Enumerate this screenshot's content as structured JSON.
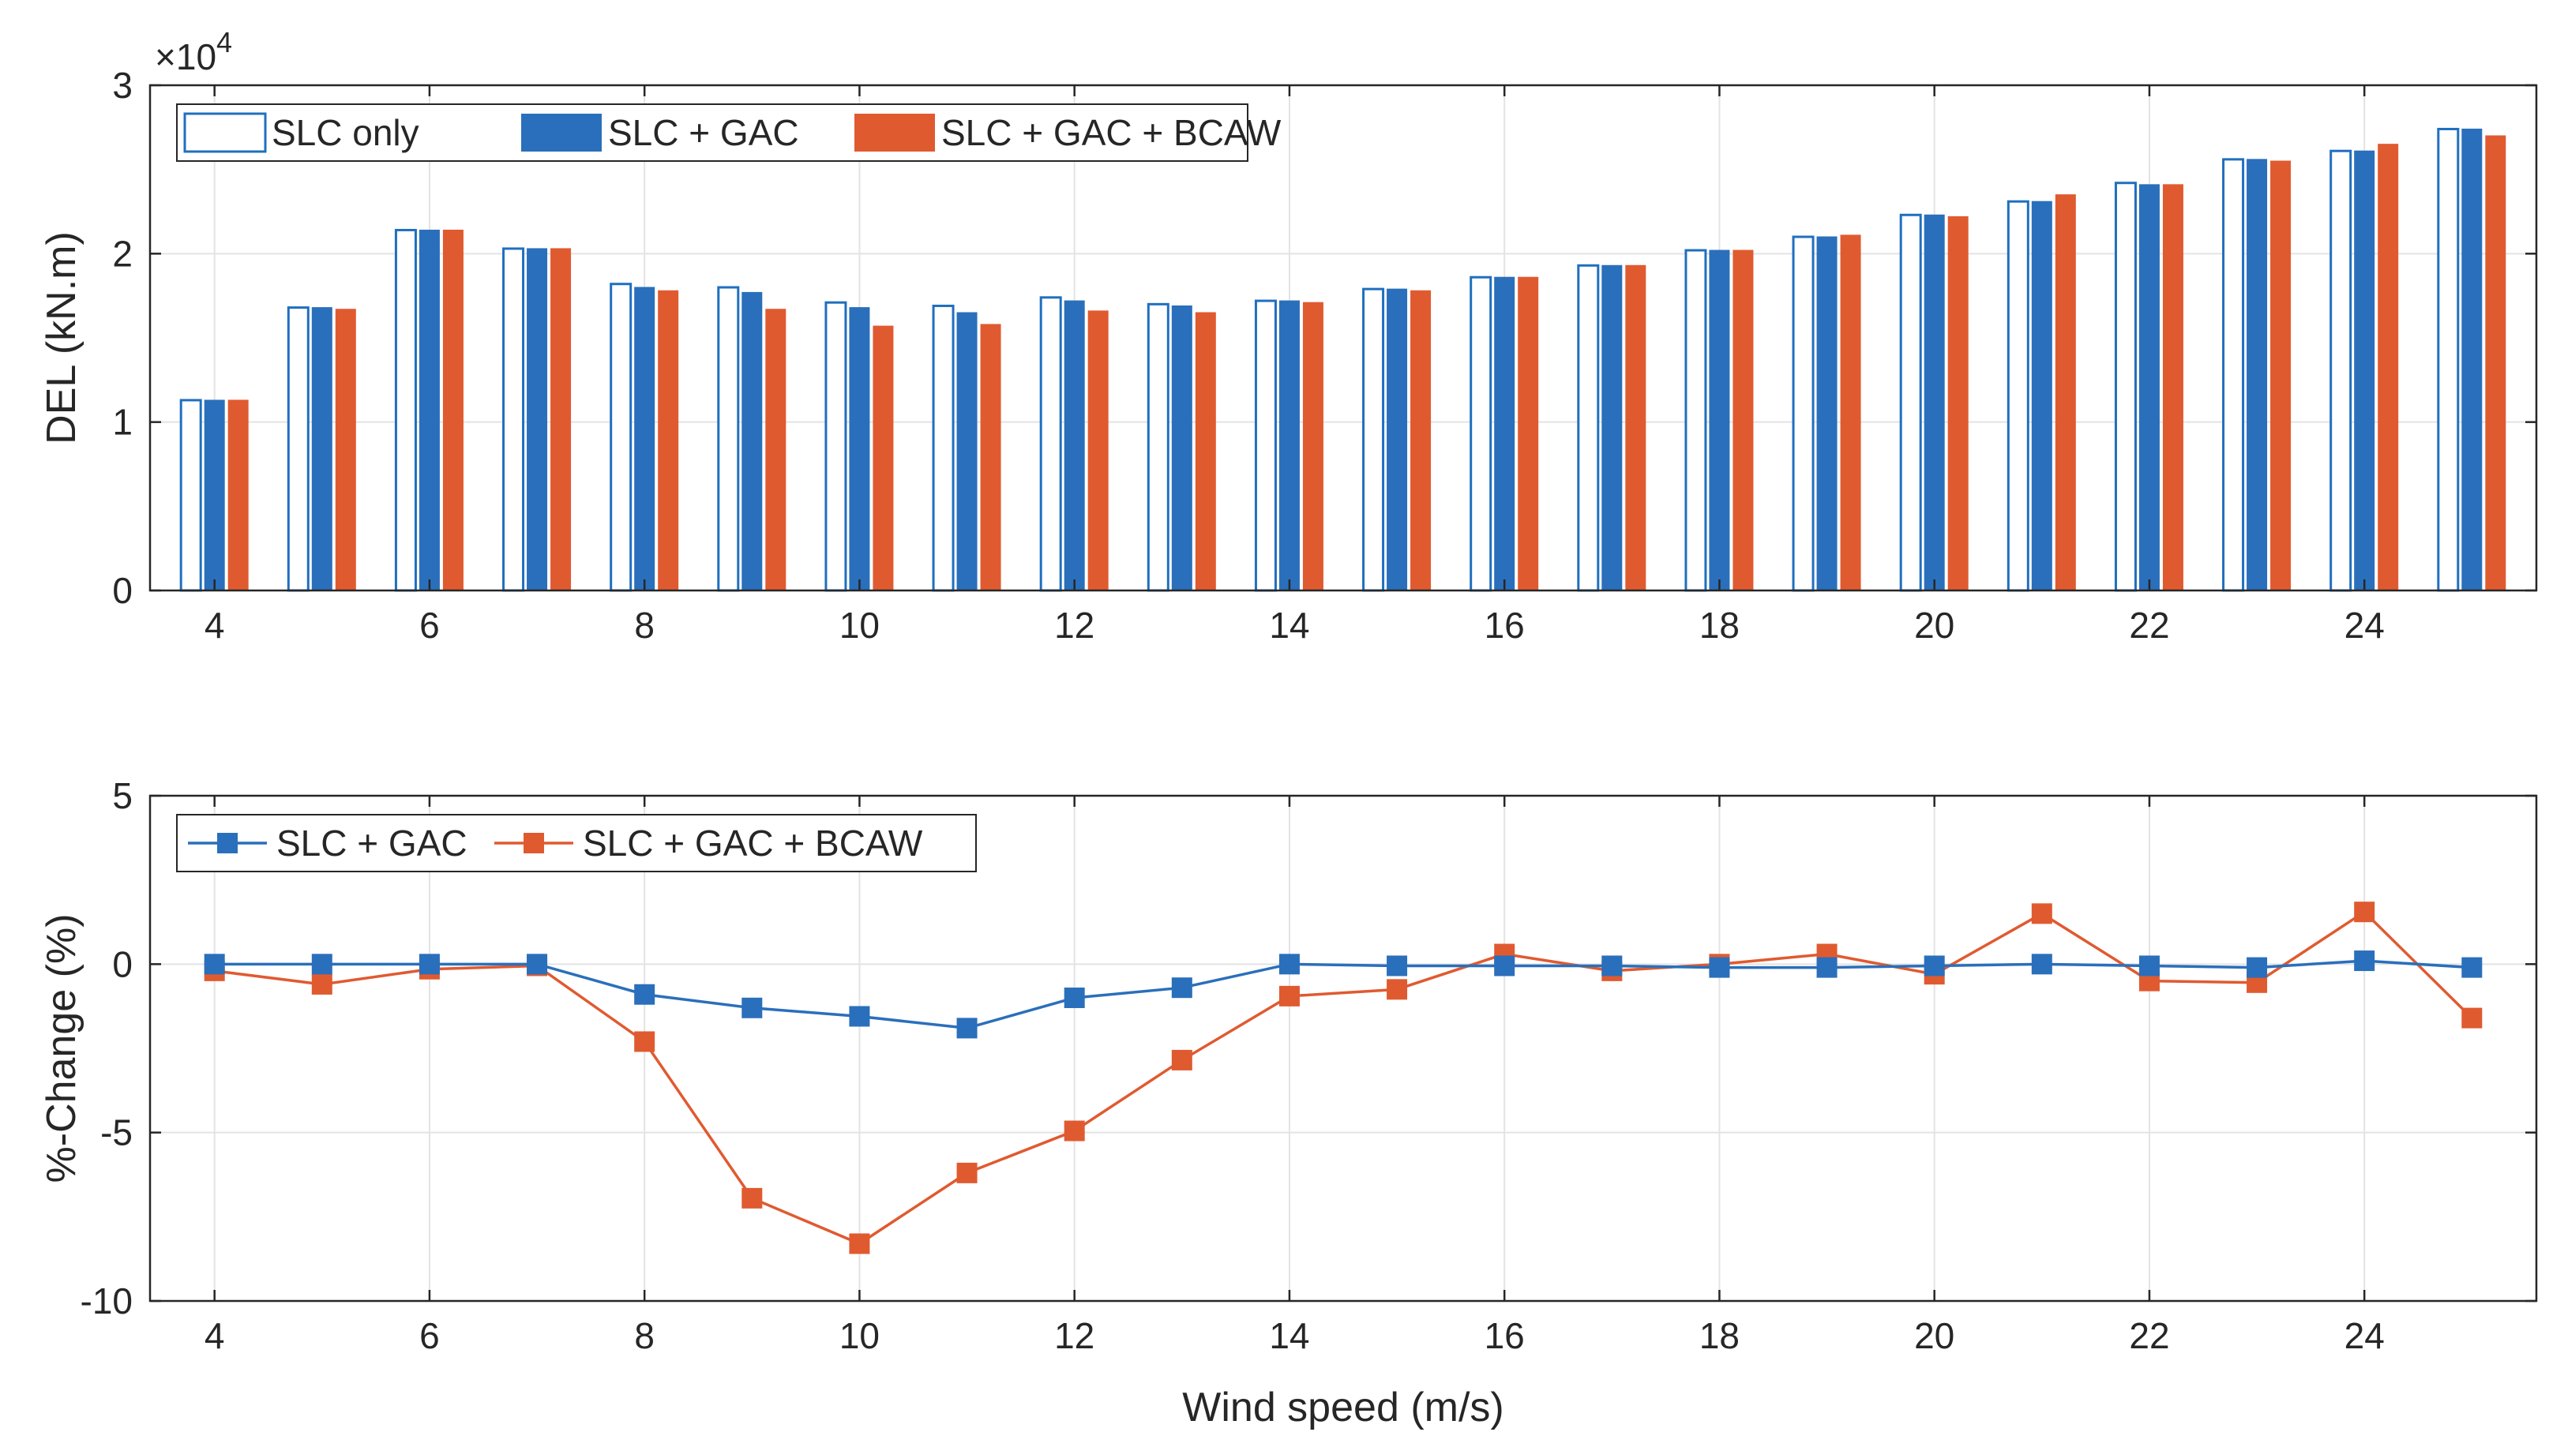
{
  "chart_data": [
    {
      "type": "bar",
      "title": "",
      "xlabel": "",
      "ylabel": "DEL (kN.m)",
      "y_exponent_label": "×10",
      "y_exponent_power": "4",
      "x": [
        4,
        5,
        6,
        7,
        8,
        9,
        10,
        11,
        12,
        13,
        14,
        15,
        16,
        17,
        18,
        19,
        20,
        21,
        22,
        23,
        24,
        25
      ],
      "xlim": [
        3.4,
        25.6
      ],
      "ylim": [
        0,
        3
      ],
      "xticks": [
        4,
        6,
        8,
        10,
        12,
        14,
        16,
        18,
        20,
        22,
        24
      ],
      "xtick_labels": [
        "4",
        "6",
        "8",
        "10",
        "12",
        "14",
        "16",
        "18",
        "20",
        "22",
        "24"
      ],
      "yticks": [
        0,
        1,
        2,
        3
      ],
      "ytick_labels": [
        "0",
        "1",
        "2",
        "3"
      ],
      "grid": true,
      "legend_position": "top-left",
      "series": [
        {
          "name": "SLC only",
          "style": "hollow",
          "color": "#1f6fbf",
          "values": [
            1.13,
            1.68,
            2.14,
            2.03,
            1.82,
            1.8,
            1.71,
            1.69,
            1.74,
            1.7,
            1.72,
            1.79,
            1.86,
            1.93,
            2.02,
            2.1,
            2.23,
            2.31,
            2.42,
            2.56,
            2.61,
            2.74
          ]
        },
        {
          "name": "SLC + GAC",
          "style": "filled",
          "color": "#2a6fbb",
          "values": [
            1.13,
            1.68,
            2.14,
            2.03,
            1.8,
            1.77,
            1.68,
            1.65,
            1.72,
            1.69,
            1.72,
            1.79,
            1.86,
            1.93,
            2.02,
            2.1,
            2.23,
            2.31,
            2.41,
            2.56,
            2.61,
            2.74
          ]
        },
        {
          "name": "SLC + GAC + BCAW",
          "style": "filled",
          "color": "#e05a30",
          "values": [
            1.13,
            1.67,
            2.14,
            2.03,
            1.78,
            1.67,
            1.57,
            1.58,
            1.66,
            1.65,
            1.71,
            1.78,
            1.86,
            1.93,
            2.02,
            2.11,
            2.22,
            2.35,
            2.41,
            2.55,
            2.65,
            2.7
          ]
        }
      ]
    },
    {
      "type": "line",
      "title": "",
      "xlabel": "Wind speed (m/s)",
      "ylabel": "%-Change (%)",
      "x": [
        4,
        5,
        6,
        7,
        8,
        9,
        10,
        11,
        12,
        13,
        14,
        15,
        16,
        17,
        18,
        19,
        20,
        21,
        22,
        23,
        24,
        25
      ],
      "xlim": [
        3.4,
        25.6
      ],
      "ylim": [
        -10,
        5
      ],
      "xticks": [
        4,
        6,
        8,
        10,
        12,
        14,
        16,
        18,
        20,
        22,
        24
      ],
      "xtick_labels": [
        "4",
        "6",
        "8",
        "10",
        "12",
        "14",
        "16",
        "18",
        "20",
        "22",
        "24"
      ],
      "yticks": [
        -10,
        -5,
        0,
        5
      ],
      "ytick_labels": [
        "-10",
        "-5",
        "0",
        "5"
      ],
      "grid": true,
      "legend_position": "top-left",
      "series": [
        {
          "name": "SLC + GAC",
          "color": "#2a6fbb",
          "marker": "square",
          "values": [
            0,
            0,
            0,
            0,
            -0.9,
            -1.3,
            -1.55,
            -1.9,
            -1.0,
            -0.7,
            0,
            -0.05,
            -0.05,
            -0.05,
            -0.1,
            -0.1,
            -0.05,
            0,
            -0.05,
            -0.1,
            0.1,
            -0.1
          ]
        },
        {
          "name": "SLC + GAC + BCAW",
          "color": "#e05a30",
          "marker": "square",
          "values": [
            -0.2,
            -0.6,
            -0.15,
            -0.05,
            -2.3,
            -6.95,
            -8.3,
            -6.2,
            -4.95,
            -2.85,
            -0.95,
            -0.75,
            0.3,
            -0.2,
            0,
            0.3,
            -0.3,
            1.5,
            -0.5,
            -0.55,
            1.55,
            -1.6
          ]
        }
      ]
    }
  ]
}
